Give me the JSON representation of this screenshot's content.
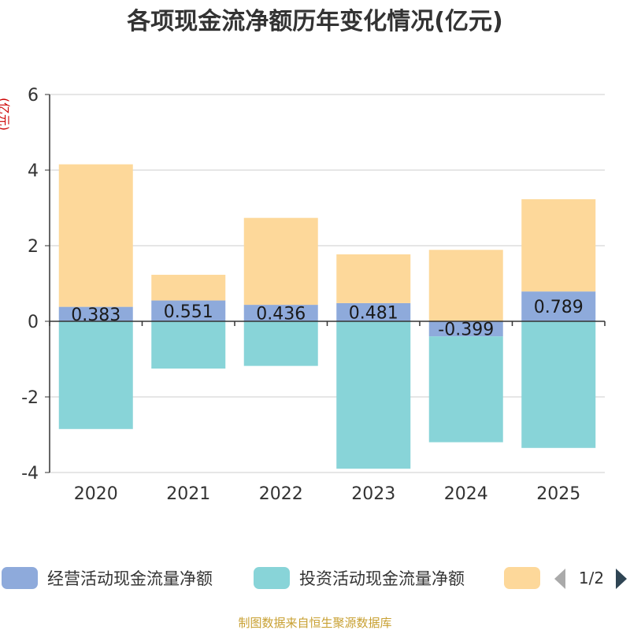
{
  "chart_data": {
    "type": "bar",
    "stacked": true,
    "title": "各项现金流净额历年变化情况(亿元)",
    "ylabel": "(亿元)",
    "categories": [
      "2020",
      "2021",
      "2022",
      "2023",
      "2024",
      "2025"
    ],
    "ylim": [
      -4,
      6
    ],
    "yticks": [
      -4,
      -2,
      0,
      2,
      4,
      6
    ],
    "grid": true,
    "series": [
      {
        "name": "经营活动现金流量净额",
        "color": "#8eaadb",
        "values": [
          0.383,
          0.551,
          0.436,
          0.481,
          -0.399,
          0.789
        ],
        "labels": [
          "0.383",
          "0.551",
          "0.436",
          "0.481",
          "-0.399",
          "0.789"
        ]
      },
      {
        "name": "投资活动现金流量净额",
        "color": "#88d4d8",
        "values": [
          -2.85,
          -1.25,
          -1.18,
          -3.9,
          -2.8,
          -3.35
        ]
      },
      {
        "name": "",
        "color": "#fdd89a",
        "values": [
          3.77,
          0.68,
          2.3,
          1.29,
          1.89,
          2.44
        ]
      }
    ],
    "legend": {
      "position": "bottom",
      "page": "1/2"
    },
    "source": "制图数据来自恒生聚源数据库"
  }
}
